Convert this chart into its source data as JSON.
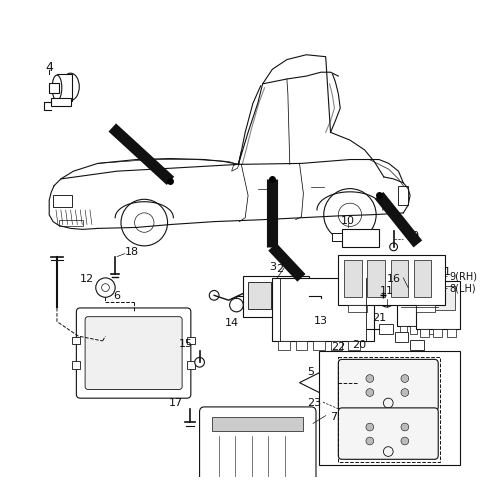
{
  "background_color": "#ffffff",
  "fig_width": 4.8,
  "fig_height": 4.85,
  "dpi": 100
}
